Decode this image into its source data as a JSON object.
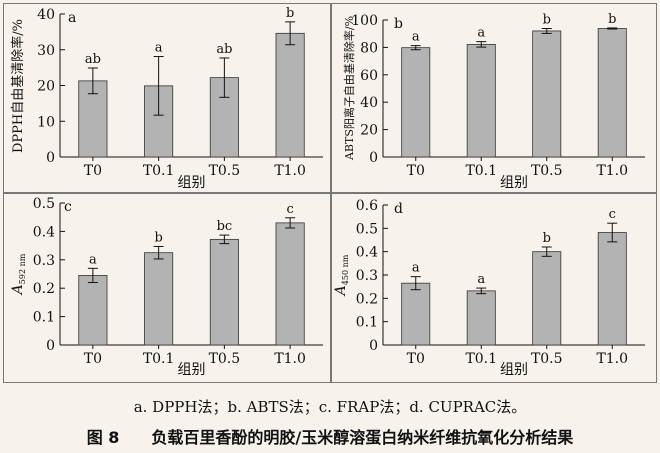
{
  "figure": {
    "note": "a. DPPH法；b. ABTS法；c. FRAP法；d. CUPRAC法。",
    "title": "图 8　　负载百里香酚的明胶/玉米醇溶蛋白纳米纤维抗氧化分析结果"
  },
  "colors": {
    "bar": "#b3b3b3",
    "bar_stroke": "#333333",
    "axis": "#111111"
  },
  "chart_data": [
    {
      "type": "bar",
      "panel": "a",
      "categories": [
        "T0",
        "T0.1",
        "T0.5",
        "T1.0"
      ],
      "values": [
        21.3,
        19.9,
        22.2,
        34.6
      ],
      "errors": [
        3.6,
        8.2,
        5.5,
        3.2
      ],
      "letters": [
        "ab",
        "a",
        "ab",
        "b"
      ],
      "xlabel": "组别",
      "ylabel": "DPPH自由基清除率/%",
      "ylim": [
        0,
        40
      ],
      "yticks": [
        0,
        10,
        20,
        30,
        40
      ],
      "tick_labels": [
        "0",
        "10",
        "20",
        "30",
        "40"
      ],
      "grid": false
    },
    {
      "type": "bar",
      "panel": "b",
      "categories": [
        "T0",
        "T0.1",
        "T0.5",
        "T1.0"
      ],
      "values": [
        79.8,
        82.2,
        92.0,
        93.8
      ],
      "errors": [
        1.5,
        2.0,
        1.8,
        0.4
      ],
      "letters": [
        "a",
        "a",
        "b",
        "b"
      ],
      "xlabel": "组别",
      "ylabel": "ABTS阳离子自由基清除率/%",
      "ylim": [
        0,
        100
      ],
      "yticks": [
        0,
        20,
        40,
        60,
        80,
        100
      ],
      "tick_labels": [
        "0",
        "20",
        "40",
        "60",
        "80",
        "100"
      ],
      "grid": false
    },
    {
      "type": "bar",
      "panel": "c",
      "categories": [
        "T0",
        "T0.1",
        "T0.5",
        "T1.0"
      ],
      "values": [
        0.245,
        0.325,
        0.372,
        0.43
      ],
      "errors": [
        0.025,
        0.022,
        0.015,
        0.018
      ],
      "letters": [
        "a",
        "b",
        "bc",
        "c"
      ],
      "xlabel": "组别",
      "ylabel": "A",
      "ylabel_sub": "592 nm",
      "ylim": [
        0,
        0.5
      ],
      "yticks": [
        0,
        0.1,
        0.2,
        0.3,
        0.4,
        0.5
      ],
      "tick_labels": [
        "0",
        "0.1",
        "0.2",
        "0.3",
        "0.4",
        "0.5"
      ],
      "grid": false
    },
    {
      "type": "bar",
      "panel": "d",
      "categories": [
        "T0",
        "T0.1",
        "T0.5",
        "T1.0"
      ],
      "values": [
        0.265,
        0.232,
        0.4,
        0.482
      ],
      "errors": [
        0.028,
        0.012,
        0.02,
        0.04
      ],
      "letters": [
        "a",
        "a",
        "b",
        "c"
      ],
      "xlabel": "组别",
      "ylabel": "A",
      "ylabel_sub": "450 nm",
      "ylim": [
        0,
        0.6
      ],
      "yticks": [
        0,
        0.1,
        0.2,
        0.3,
        0.4,
        0.5,
        0.6
      ],
      "tick_labels": [
        "0",
        "0.1",
        "0.2",
        "0.3",
        "0.4",
        "0.5",
        "0.6"
      ],
      "grid": false
    }
  ]
}
